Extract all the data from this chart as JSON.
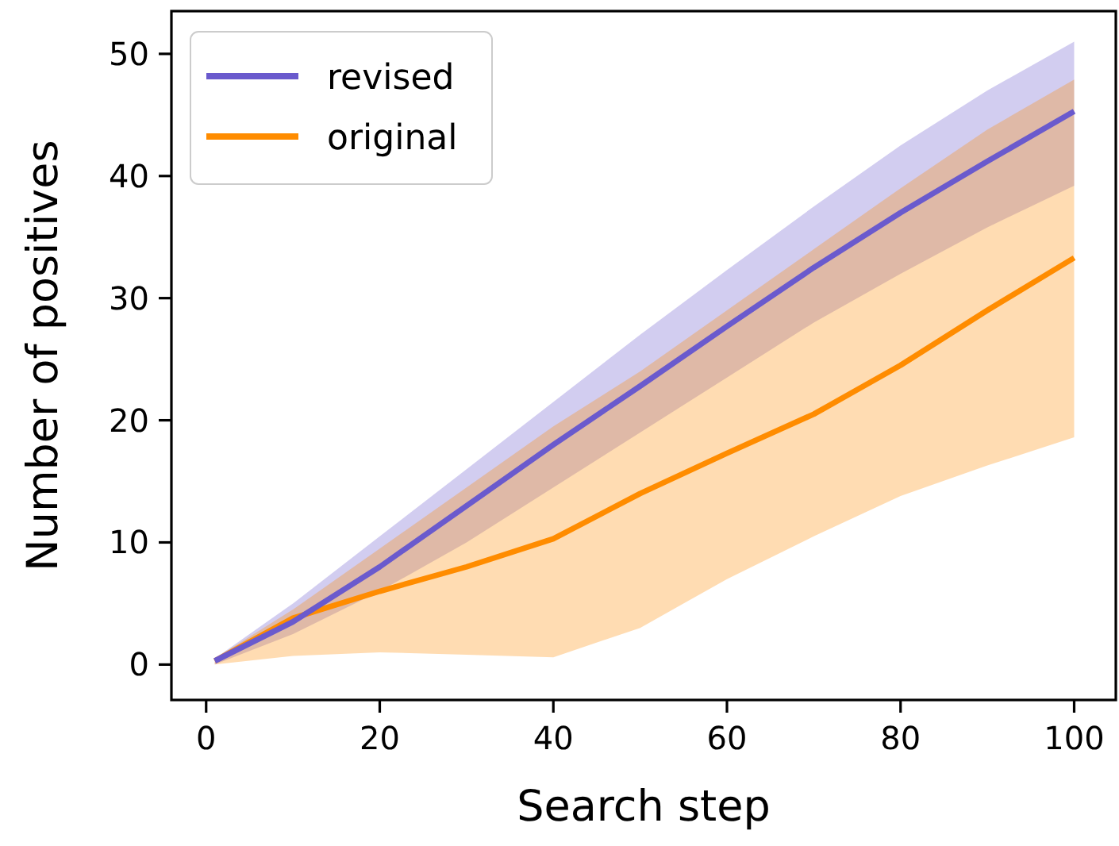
{
  "chart_data": {
    "type": "line",
    "xlabel": "Search step",
    "ylabel": "Number of positives",
    "x": [
      1,
      10,
      20,
      30,
      40,
      50,
      60,
      70,
      80,
      90,
      100
    ],
    "xlim": [
      -4,
      104.8
    ],
    "ylim": [
      -2.9,
      53.5
    ],
    "xticks": [
      0,
      20,
      40,
      60,
      80,
      100
    ],
    "yticks": [
      0,
      10,
      20,
      30,
      40,
      50
    ],
    "grid": false,
    "legend": "top left",
    "series": [
      {
        "name": "revised",
        "color": "#6a5acd",
        "values": [
          0.3,
          3.5,
          8,
          13,
          18,
          22.8,
          27.7,
          32.5,
          37,
          41.2,
          45.3
        ],
        "lower": [
          0,
          2.5,
          6,
          10,
          14.5,
          19,
          23.5,
          28,
          32,
          35.8,
          39.2
        ],
        "upper": [
          0.5,
          5,
          10.5,
          16,
          21.5,
          27,
          32.3,
          37.5,
          42.5,
          47,
          51
        ]
      },
      {
        "name": "original",
        "color": "#ff8c00",
        "values": [
          0.3,
          3.8,
          6,
          8,
          10.3,
          14,
          17.3,
          20.5,
          24.5,
          29,
          33.3
        ],
        "lower": [
          0,
          0.7,
          1,
          0.8,
          0.6,
          3,
          7,
          10.5,
          13.8,
          16.3,
          18.6
        ],
        "upper": [
          0.5,
          4.5,
          9.5,
          14.5,
          19.5,
          24,
          29,
          34,
          39,
          43.8,
          47.9
        ]
      }
    ]
  }
}
